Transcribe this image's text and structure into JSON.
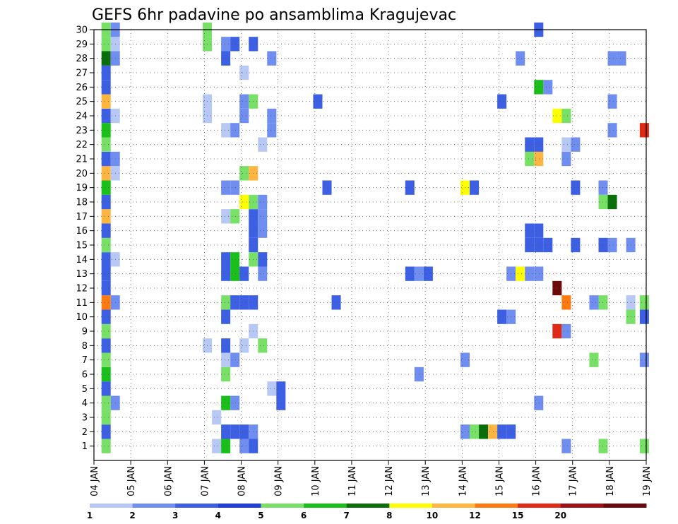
{
  "chart_data": {
    "type": "heatmap",
    "title": "GEFS 6hr padavine po ansamblima Kragujevac",
    "x_ticks": [
      "04 JAN",
      "05 JAN",
      "06 JAN",
      "07 JAN",
      "08 JAN",
      "09 JAN",
      "10 JAN",
      "11 JAN",
      "12 JAN",
      "13 JAN",
      "14 JAN",
      "15 JAN",
      "16 JAN",
      "17 JAN",
      "18 JAN",
      "19 JAN"
    ],
    "y_ticks": [
      1,
      2,
      3,
      4,
      5,
      6,
      7,
      8,
      9,
      10,
      11,
      12,
      13,
      14,
      15,
      16,
      17,
      18,
      19,
      20,
      21,
      22,
      23,
      24,
      25,
      26,
      27,
      28,
      29,
      30
    ],
    "xlim": [
      0,
      15
    ],
    "ylim": [
      0,
      30
    ],
    "grid": true,
    "colorbar": {
      "levels": [
        "1",
        "2",
        "3",
        "4",
        "5",
        "6",
        "7",
        "8",
        "10",
        "12",
        "15",
        "20"
      ],
      "colors": [
        "#b8c8f5",
        "#6f8ef0",
        "#3d5fe4",
        "#1f3fd8",
        "#78e066",
        "#1bbf1b",
        "#0a6f0a",
        "#ffff00",
        "#ffb640",
        "#ff7a10",
        "#e02a16",
        "#a0101a",
        "#6a0a0a"
      ]
    },
    "cells": [
      {
        "x": 0.33,
        "y": 1,
        "v": 5
      },
      {
        "x": 0.33,
        "y": 2,
        "v": 3.5
      },
      {
        "x": 0.33,
        "y": 3,
        "v": 5
      },
      {
        "x": 0.33,
        "y": 4,
        "v": 5
      },
      {
        "x": 0.33,
        "y": 5,
        "v": 3.5
      },
      {
        "x": 0.33,
        "y": 6,
        "v": 6
      },
      {
        "x": 0.33,
        "y": 7,
        "v": 5
      },
      {
        "x": 0.33,
        "y": 8,
        "v": 3
      },
      {
        "x": 0.33,
        "y": 9,
        "v": 5
      },
      {
        "x": 0.33,
        "y": 10,
        "v": 3
      },
      {
        "x": 0.33,
        "y": 11,
        "v": 12
      },
      {
        "x": 0.33,
        "y": 12,
        "v": 3.5
      },
      {
        "x": 0.33,
        "y": 13,
        "v": 3.5
      },
      {
        "x": 0.33,
        "y": 14,
        "v": 3.5
      },
      {
        "x": 0.33,
        "y": 15,
        "v": 5
      },
      {
        "x": 0.33,
        "y": 16,
        "v": 3.5
      },
      {
        "x": 0.33,
        "y": 17,
        "v": 10
      },
      {
        "x": 0.33,
        "y": 18,
        "v": 3
      },
      {
        "x": 0.33,
        "y": 19,
        "v": 6
      },
      {
        "x": 0.33,
        "y": 20,
        "v": 10
      },
      {
        "x": 0.33,
        "y": 21,
        "v": 3
      },
      {
        "x": 0.33,
        "y": 22,
        "v": 5
      },
      {
        "x": 0.33,
        "y": 23,
        "v": 6
      },
      {
        "x": 0.33,
        "y": 24,
        "v": 3
      },
      {
        "x": 0.33,
        "y": 25,
        "v": 10
      },
      {
        "x": 0.33,
        "y": 26,
        "v": 3.5
      },
      {
        "x": 0.33,
        "y": 27,
        "v": 3.5
      },
      {
        "x": 0.33,
        "y": 28,
        "v": 7
      },
      {
        "x": 0.33,
        "y": 29,
        "v": 5
      },
      {
        "x": 0.33,
        "y": 30,
        "v": 5
      },
      {
        "x": 0.58,
        "y": 4,
        "v": 2
      },
      {
        "x": 0.58,
        "y": 11,
        "v": 2
      },
      {
        "x": 0.58,
        "y": 14,
        "v": 1
      },
      {
        "x": 0.58,
        "y": 20,
        "v": 1
      },
      {
        "x": 0.58,
        "y": 21,
        "v": 2
      },
      {
        "x": 0.58,
        "y": 24,
        "v": 1
      },
      {
        "x": 0.58,
        "y": 28,
        "v": 2
      },
      {
        "x": 0.58,
        "y": 29,
        "v": 1
      },
      {
        "x": 0.58,
        "y": 30,
        "v": 2
      },
      {
        "x": 3.33,
        "y": 1,
        "v": 1
      },
      {
        "x": 3.33,
        "y": 3,
        "v": 1
      },
      {
        "x": 3.58,
        "y": 1,
        "v": 6
      },
      {
        "x": 3.58,
        "y": 2,
        "v": 3
      },
      {
        "x": 3.58,
        "y": 4,
        "v": 6
      },
      {
        "x": 3.58,
        "y": 6,
        "v": 5
      },
      {
        "x": 3.58,
        "y": 7,
        "v": 1
      },
      {
        "x": 3.58,
        "y": 8,
        "v": 3.5
      },
      {
        "x": 3.58,
        "y": 10,
        "v": 3.5
      },
      {
        "x": 3.58,
        "y": 11,
        "v": 5
      },
      {
        "x": 3.58,
        "y": 13,
        "v": 3.5
      },
      {
        "x": 3.58,
        "y": 14,
        "v": 3.5
      },
      {
        "x": 3.58,
        "y": 17,
        "v": 1
      },
      {
        "x": 3.58,
        "y": 19,
        "v": 2
      },
      {
        "x": 3.58,
        "y": 23,
        "v": 1
      },
      {
        "x": 3.58,
        "y": 28,
        "v": 3.5
      },
      {
        "x": 3.58,
        "y": 29,
        "v": 2
      },
      {
        "x": 3.08,
        "y": 29,
        "v": 5
      },
      {
        "x": 3.08,
        "y": 30,
        "v": 5
      },
      {
        "x": 3.08,
        "y": 8,
        "v": 1
      },
      {
        "x": 3.08,
        "y": 24,
        "v": 1
      },
      {
        "x": 3.08,
        "y": 25,
        "v": 1
      },
      {
        "x": 3.83,
        "y": 2,
        "v": 3
      },
      {
        "x": 3.83,
        "y": 4,
        "v": 2
      },
      {
        "x": 3.83,
        "y": 7,
        "v": 2
      },
      {
        "x": 3.83,
        "y": 11,
        "v": 3.5
      },
      {
        "x": 3.83,
        "y": 13,
        "v": 6
      },
      {
        "x": 3.83,
        "y": 14,
        "v": 6
      },
      {
        "x": 3.83,
        "y": 17,
        "v": 5
      },
      {
        "x": 3.83,
        "y": 19,
        "v": 2
      },
      {
        "x": 3.83,
        "y": 23,
        "v": 2
      },
      {
        "x": 3.83,
        "y": 29,
        "v": 3.5
      },
      {
        "x": 4.08,
        "y": 1,
        "v": 2
      },
      {
        "x": 4.08,
        "y": 2,
        "v": 3.5
      },
      {
        "x": 4.08,
        "y": 8,
        "v": 1
      },
      {
        "x": 4.08,
        "y": 11,
        "v": 3
      },
      {
        "x": 4.08,
        "y": 13,
        "v": 3.5
      },
      {
        "x": 4.08,
        "y": 18,
        "v": 8
      },
      {
        "x": 4.08,
        "y": 20,
        "v": 5
      },
      {
        "x": 4.08,
        "y": 24,
        "v": 2
      },
      {
        "x": 4.08,
        "y": 25,
        "v": 2
      },
      {
        "x": 4.08,
        "y": 27,
        "v": 1
      },
      {
        "x": 4.33,
        "y": 1,
        "v": 3
      },
      {
        "x": 4.33,
        "y": 2,
        "v": 2
      },
      {
        "x": 4.33,
        "y": 9,
        "v": 1
      },
      {
        "x": 4.33,
        "y": 11,
        "v": 3.5
      },
      {
        "x": 4.33,
        "y": 14,
        "v": 5
      },
      {
        "x": 4.33,
        "y": 15,
        "v": 3.5
      },
      {
        "x": 4.33,
        "y": 16,
        "v": 3.5
      },
      {
        "x": 4.33,
        "y": 17,
        "v": 3.5
      },
      {
        "x": 4.33,
        "y": 18,
        "v": 5
      },
      {
        "x": 4.33,
        "y": 20,
        "v": 10
      },
      {
        "x": 4.33,
        "y": 25,
        "v": 5
      },
      {
        "x": 4.33,
        "y": 29,
        "v": 3.5
      },
      {
        "x": 4.58,
        "y": 8,
        "v": 5
      },
      {
        "x": 4.58,
        "y": 13,
        "v": 2
      },
      {
        "x": 4.58,
        "y": 14,
        "v": 3.5
      },
      {
        "x": 4.58,
        "y": 16,
        "v": 2
      },
      {
        "x": 4.58,
        "y": 17,
        "v": 2
      },
      {
        "x": 4.58,
        "y": 18,
        "v": 2
      },
      {
        "x": 4.58,
        "y": 22,
        "v": 1
      },
      {
        "x": 4.83,
        "y": 5,
        "v": 1
      },
      {
        "x": 4.83,
        "y": 24,
        "v": 2
      },
      {
        "x": 4.83,
        "y": 23,
        "v": 2
      },
      {
        "x": 4.83,
        "y": 28,
        "v": 2
      },
      {
        "x": 5.08,
        "y": 4,
        "v": 3
      },
      {
        "x": 5.08,
        "y": 5,
        "v": 3.5
      },
      {
        "x": 6.08,
        "y": 25,
        "v": 3
      },
      {
        "x": 6.33,
        "y": 19,
        "v": 3
      },
      {
        "x": 6.58,
        "y": 11,
        "v": 3
      },
      {
        "x": 8.83,
        "y": 6,
        "v": 2
      },
      {
        "x": 8.58,
        "y": 13,
        "v": 3
      },
      {
        "x": 8.58,
        "y": 19,
        "v": 3
      },
      {
        "x": 8.83,
        "y": 13,
        "v": 2
      },
      {
        "x": 9.08,
        "y": 13,
        "v": 3
      },
      {
        "x": 10.08,
        "y": 19,
        "v": 8
      },
      {
        "x": 10.33,
        "y": 19,
        "v": 3
      },
      {
        "x": 10.08,
        "y": 7,
        "v": 2
      },
      {
        "x": 10.08,
        "y": 2,
        "v": 2
      },
      {
        "x": 10.33,
        "y": 2,
        "v": 5
      },
      {
        "x": 10.58,
        "y": 2,
        "v": 7
      },
      {
        "x": 10.83,
        "y": 2,
        "v": 10
      },
      {
        "x": 11.08,
        "y": 2,
        "v": 3.5
      },
      {
        "x": 11.33,
        "y": 2,
        "v": 3
      },
      {
        "x": 11.08,
        "y": 10,
        "v": 3.5
      },
      {
        "x": 11.33,
        "y": 10,
        "v": 2
      },
      {
        "x": 11.33,
        "y": 13,
        "v": 2
      },
      {
        "x": 11.58,
        "y": 13,
        "v": 8
      },
      {
        "x": 11.83,
        "y": 13,
        "v": 2
      },
      {
        "x": 11.08,
        "y": 25,
        "v": 3.5
      },
      {
        "x": 11.58,
        "y": 28,
        "v": 2
      },
      {
        "x": 12.08,
        "y": 21,
        "v": 10
      },
      {
        "x": 12.08,
        "y": 22,
        "v": 3
      },
      {
        "x": 11.83,
        "y": 21,
        "v": 5
      },
      {
        "x": 11.83,
        "y": 22,
        "v": 3.5
      },
      {
        "x": 11.83,
        "y": 15,
        "v": 3
      },
      {
        "x": 11.83,
        "y": 16,
        "v": 3
      },
      {
        "x": 12.08,
        "y": 15,
        "v": 3.5
      },
      {
        "x": 12.08,
        "y": 16,
        "v": 3.5
      },
      {
        "x": 12.08,
        "y": 26,
        "v": 6
      },
      {
        "x": 12.33,
        "y": 26,
        "v": 2
      },
      {
        "x": 12.08,
        "y": 4,
        "v": 2
      },
      {
        "x": 12.08,
        "y": 13,
        "v": 2
      },
      {
        "x": 12.33,
        "y": 15,
        "v": 3.5
      },
      {
        "x": 12.08,
        "y": 30,
        "v": 3.5
      },
      {
        "x": 12.58,
        "y": 9,
        "v": 15
      },
      {
        "x": 12.83,
        "y": 9,
        "v": 2
      },
      {
        "x": 12.58,
        "y": 12,
        "v": 20
      },
      {
        "x": 12.83,
        "y": 11,
        "v": 12
      },
      {
        "x": 12.58,
        "y": 24,
        "v": 8
      },
      {
        "x": 12.83,
        "y": 24,
        "v": 5
      },
      {
        "x": 13.08,
        "y": 15,
        "v": 3.5
      },
      {
        "x": 13.08,
        "y": 19,
        "v": 3.5
      },
      {
        "x": 12.83,
        "y": 1,
        "v": 2
      },
      {
        "x": 12.83,
        "y": 21,
        "v": 2
      },
      {
        "x": 12.83,
        "y": 22,
        "v": 1
      },
      {
        "x": 13.08,
        "y": 22,
        "v": 2
      },
      {
        "x": 13.58,
        "y": 7,
        "v": 5
      },
      {
        "x": 13.83,
        "y": 1,
        "v": 5
      },
      {
        "x": 13.58,
        "y": 11,
        "v": 2
      },
      {
        "x": 13.83,
        "y": 11,
        "v": 5
      },
      {
        "x": 13.83,
        "y": 19,
        "v": 2
      },
      {
        "x": 13.83,
        "y": 18,
        "v": 5
      },
      {
        "x": 14.08,
        "y": 18,
        "v": 7
      },
      {
        "x": 13.83,
        "y": 15,
        "v": 3.5
      },
      {
        "x": 14.08,
        "y": 15,
        "v": 2
      },
      {
        "x": 14.08,
        "y": 23,
        "v": 2
      },
      {
        "x": 14.08,
        "y": 25,
        "v": 2
      },
      {
        "x": 14.08,
        "y": 28,
        "v": 2
      },
      {
        "x": 14.33,
        "y": 28,
        "v": 2
      },
      {
        "x": 14.58,
        "y": 15,
        "v": 2
      },
      {
        "x": 14.58,
        "y": 10,
        "v": 5
      },
      {
        "x": 14.58,
        "y": 11,
        "v": 1
      },
      {
        "x": 14.95,
        "y": 23,
        "v": 15
      },
      {
        "x": 14.95,
        "y": 10,
        "v": 3.5
      },
      {
        "x": 14.95,
        "y": 1,
        "v": 5
      },
      {
        "x": 14.95,
        "y": 7,
        "v": 2
      },
      {
        "x": 14.95,
        "y": 11,
        "v": 5
      }
    ]
  }
}
